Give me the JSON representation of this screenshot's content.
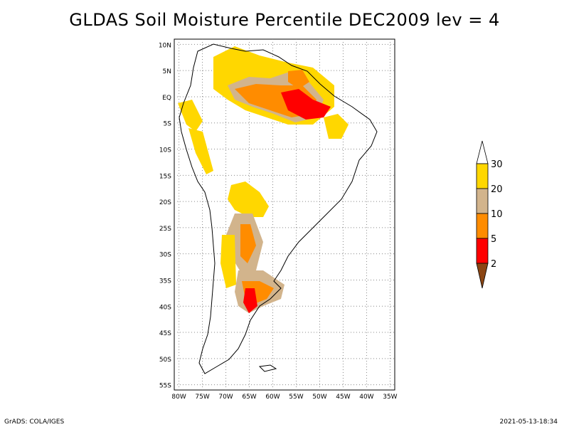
{
  "map": {
    "title": "GLDAS Soil Moisture Percentile DEC2009 lev = 4",
    "lat_labels": [
      "10N",
      "5N",
      "EQ",
      "5S",
      "10S",
      "15S",
      "20S",
      "25S",
      "30S",
      "35S",
      "40S",
      "45S",
      "50S",
      "55S"
    ],
    "lon_labels": [
      "80W",
      "75W",
      "70W",
      "65W",
      "60W",
      "55W",
      "50W",
      "45W",
      "40W",
      "35W"
    ],
    "lat_range": [
      -56,
      11
    ],
    "lon_range": [
      -81,
      -34
    ]
  },
  "legend": {
    "labels": [
      "2",
      "5",
      "10",
      "20",
      "30"
    ],
    "colors": {
      "below_2": "#8B4513",
      "2_5": "#FF0000",
      "5_10": "#FF8C00",
      "10_20": "#D2B48C",
      "20_30": "#FFD700",
      "above_30": "#FFFFFF"
    }
  },
  "footer": {
    "left": "GrADS: COLA/IGES",
    "right": "2021-05-13-18:34"
  }
}
